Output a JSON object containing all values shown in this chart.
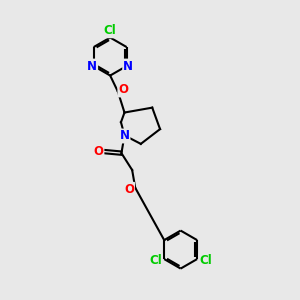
{
  "bg_color": "#e8e8e8",
  "bond_color": "#000000",
  "bond_width": 1.5,
  "atom_colors": {
    "Cl": "#00cc00",
    "N": "#0000ff",
    "O": "#ff0000",
    "C": "#000000"
  },
  "font_size": 8.5,
  "fig_size": [
    3.0,
    3.0
  ],
  "dpi": 100
}
